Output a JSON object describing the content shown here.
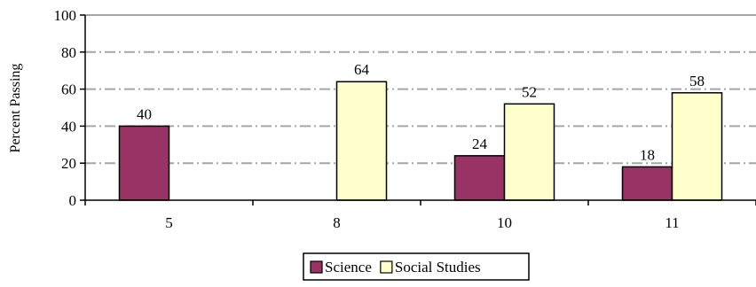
{
  "chart_data": {
    "type": "bar",
    "title": "",
    "xlabel": "",
    "ylabel": "Percent Passing",
    "ylim": [
      0,
      100
    ],
    "yticks": [
      0,
      20,
      40,
      60,
      80,
      100
    ],
    "grid": true,
    "legend_position": "bottom",
    "categories": [
      "5",
      "8",
      "10",
      "11"
    ],
    "series": [
      {
        "name": "Science",
        "color": "#993366",
        "values": [
          40,
          null,
          24,
          18
        ]
      },
      {
        "name": "Social Studies",
        "color": "#FFFFCC",
        "values": [
          null,
          64,
          52,
          58
        ]
      }
    ]
  }
}
